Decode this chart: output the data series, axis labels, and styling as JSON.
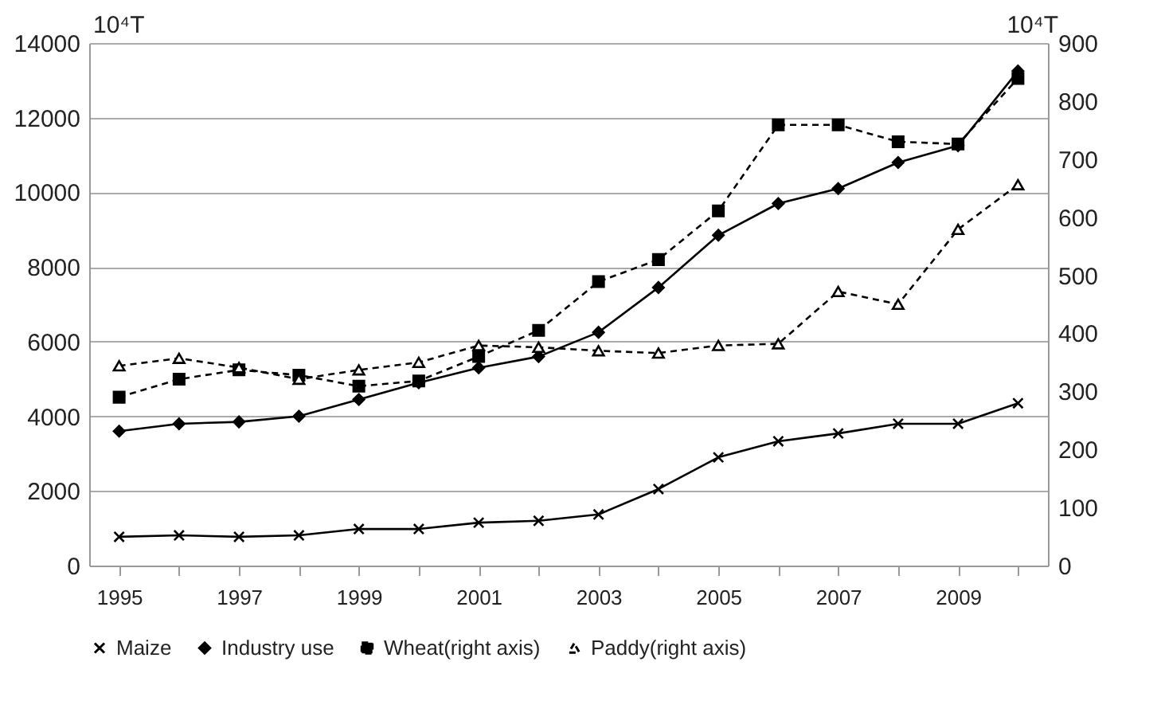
{
  "chart_data": {
    "type": "line",
    "ylabel": "10⁴T",
    "y2label": "10⁴T",
    "categories": [
      "1995",
      null,
      "1997",
      null,
      "1999",
      null,
      "2001",
      null,
      "2003",
      null,
      "2005",
      null,
      "2007",
      null,
      "2009",
      null
    ],
    "ylim": [
      0,
      14000
    ],
    "yticks": [
      0,
      2000,
      4000,
      6000,
      8000,
      10000,
      12000,
      14000
    ],
    "y2lim": [
      0,
      900
    ],
    "y2ticks": [
      0,
      100,
      200,
      300,
      400,
      500,
      600,
      700,
      800,
      900
    ],
    "grid": "y",
    "legend": "bottom",
    "series": [
      {
        "name": "Maize",
        "color": "#000000",
        "marker": "cross",
        "line_style": "solid",
        "values": [
          770,
          810,
          770,
          810,
          980,
          980,
          1150,
          1200,
          1370,
          2050,
          2900,
          3330,
          3540,
          3800,
          3800,
          4350
        ]
      },
      {
        "name": "Industry use",
        "color": "#000000",
        "marker": "diamond",
        "line_style": "solid",
        "values": [
          3600,
          3800,
          3850,
          4000,
          4450,
          4900,
          5300,
          5600,
          6250,
          7450,
          8850,
          9700,
          10100,
          10800,
          11250,
          13250
        ]
      },
      {
        "name": "Wheat(right axis)",
        "color": "#000000",
        "marker": "square",
        "line_style": "dashed",
        "axis": "y2",
        "values": [
          290,
          321,
          337,
          328,
          309,
          318,
          360,
          405,
          489,
          527,
          611,
          759,
          759,
          730,
          726,
          839
        ]
      },
      {
        "name": "Paddy(right axis)",
        "color": "#000000",
        "marker": "triangle",
        "line_style": "dashed",
        "axis": "y2",
        "values": [
          344,
          357,
          341,
          321,
          337,
          350,
          379,
          376,
          370,
          366,
          379,
          382,
          472,
          450,
          579,
          656
        ]
      }
    ]
  }
}
